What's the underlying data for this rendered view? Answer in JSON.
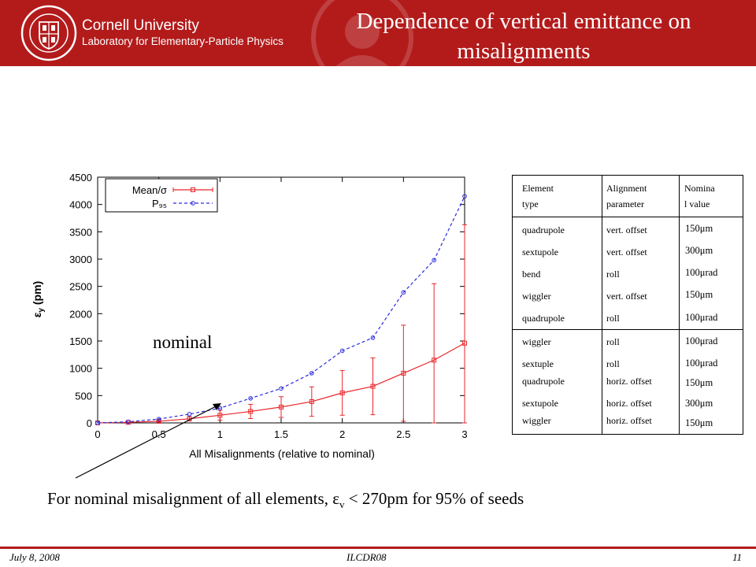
{
  "header": {
    "university": "Cornell University",
    "lab": "Laboratory for Elementary-Particle Physics",
    "title_line1": "Dependence of vertical emittance on",
    "title_line2": "misalignments"
  },
  "chart_data": {
    "type": "line",
    "xlabel": "All Misalignments (relative to nominal)",
    "ylabel": "ε_y (pm)",
    "xlim": [
      0,
      3
    ],
    "ylim": [
      0,
      4500
    ],
    "xticks": [
      "0",
      "0.5",
      "1",
      "1.5",
      "2",
      "2.5",
      "3"
    ],
    "yticks": [
      "0",
      "500",
      "1000",
      "1500",
      "2000",
      "2500",
      "3000",
      "3500",
      "4000",
      "4500"
    ],
    "legend_position": "top-left",
    "series": [
      {
        "name": "Mean/σ",
        "color": "#e8262a",
        "style": "solid",
        "marker": "square",
        "x": [
          0,
          0.25,
          0.5,
          0.75,
          1,
          1.25,
          1.5,
          1.75,
          2,
          2.25,
          2.5,
          2.75,
          3
        ],
        "y": [
          0,
          10,
          30,
          75,
          140,
          210,
          290,
          390,
          550,
          670,
          910,
          1150,
          1460
        ],
        "err": [
          0,
          5,
          15,
          40,
          90,
          130,
          190,
          270,
          410,
          520,
          880,
          1400,
          2170
        ]
      },
      {
        "name": "P₉₅",
        "color": "#2a2ae0",
        "style": "dashed",
        "marker": "circle",
        "x": [
          0,
          0.25,
          0.5,
          0.75,
          1,
          1.25,
          1.5,
          1.75,
          2,
          2.25,
          2.5,
          2.75,
          3
        ],
        "y": [
          0,
          20,
          70,
          160,
          270,
          450,
          630,
          910,
          1320,
          1560,
          2390,
          2980,
          4150
        ]
      }
    ]
  },
  "annotation": {
    "nominal": "nominal"
  },
  "table": {
    "headers": {
      "element_line1": "Element",
      "element_line2": "type",
      "alignment_line1": "Alignment",
      "alignment_line2": "parameter",
      "nominal_line1": "Nomina",
      "nominal_line2": "l value"
    },
    "rows": [
      {
        "element": "quadrupole",
        "param": "vert. offset",
        "value": "150μm"
      },
      {
        "element": "sextupole",
        "param": "vert. offset",
        "value": "300μm"
      },
      {
        "element": "bend",
        "param": "roll",
        "value": "100μrad"
      },
      {
        "element": "wiggler",
        "param": "vert. offset",
        "value": "150μm"
      },
      {
        "element": "quadrupole",
        "param": "roll",
        "value": "100μrad"
      },
      {
        "element": "wiggler",
        "param": "roll",
        "value": "100μrad"
      },
      {
        "element": "sextuple",
        "param": "roll",
        "value": "100μrad"
      },
      {
        "element": "quadrupole",
        "param": "horiz. offset",
        "value": "150μm"
      },
      {
        "element": "sextupole",
        "param": "horiz. offset",
        "value": "300μm"
      },
      {
        "element": "wiggler",
        "param": "horiz. offset",
        "value": "150μm"
      }
    ]
  },
  "caption": {
    "prefix": "For nominal misalignment of all elements,  ε",
    "sub": "v",
    "suffix": " < 270pm for 95% of seeds"
  },
  "footer": {
    "date": "July 8, 2008",
    "conference": "ILCDR08",
    "page": "11"
  }
}
